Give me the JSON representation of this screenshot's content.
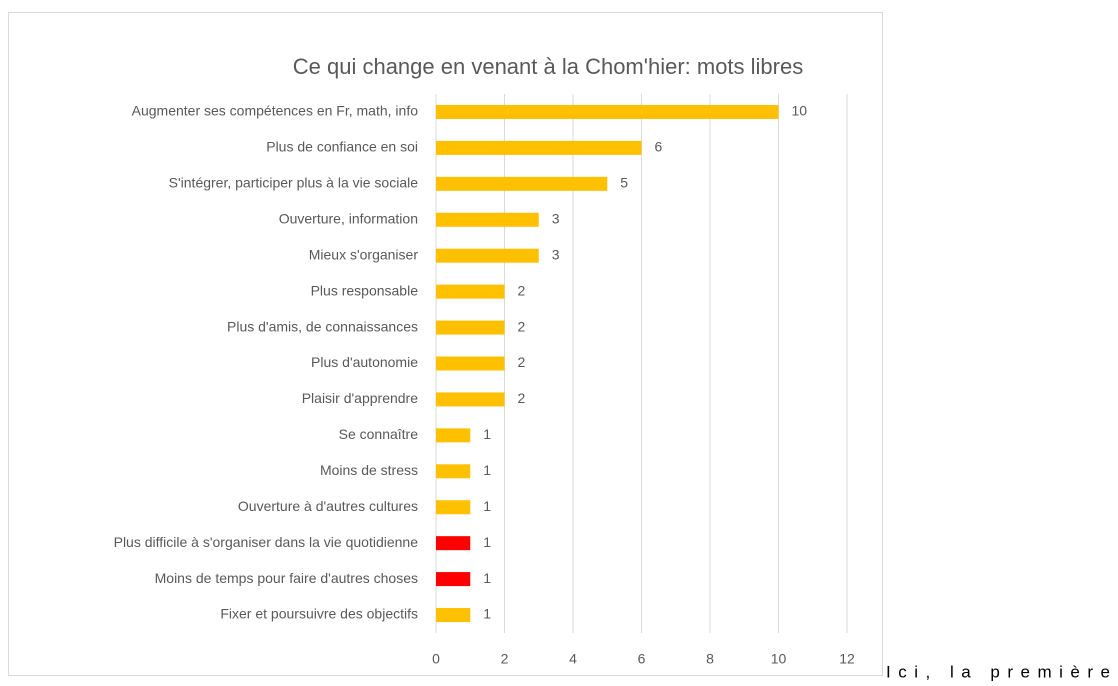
{
  "chart_data": {
    "type": "barh",
    "title": "Ce qui change en venant à la Chom'hier: mots libres",
    "categories": [
      "Augmenter ses compétences en Fr, math, info",
      "Plus de confiance en soi",
      "S'intégrer, participer plus à la vie sociale",
      "Ouverture, information",
      "Mieux s'organiser",
      "Plus responsable",
      "Plus d'amis, de connaissances",
      "Plus d'autonomie",
      "Plaisir d'apprendre",
      "Se connaître",
      "Moins de stress",
      "Ouverture à d'autres cultures",
      "Plus difficile à s'organiser dans la vie quotidienne",
      "Moins de temps pour faire d'autres choses",
      "Fixer et poursuivre des objectifs"
    ],
    "values": [
      10,
      6,
      5,
      3,
      3,
      2,
      2,
      2,
      2,
      1,
      1,
      1,
      1,
      1,
      1
    ],
    "colors": [
      "#ffc000",
      "#ffc000",
      "#ffc000",
      "#ffc000",
      "#ffc000",
      "#ffc000",
      "#ffc000",
      "#ffc000",
      "#ffc000",
      "#ffc000",
      "#ffc000",
      "#ffc000",
      "#ff0000",
      "#ff0000",
      "#ffc000"
    ],
    "xlim": [
      0,
      12
    ],
    "xticks": [
      0,
      2,
      4,
      6,
      8,
      10,
      12
    ],
    "grid": true
  },
  "text": "Ici, la première"
}
